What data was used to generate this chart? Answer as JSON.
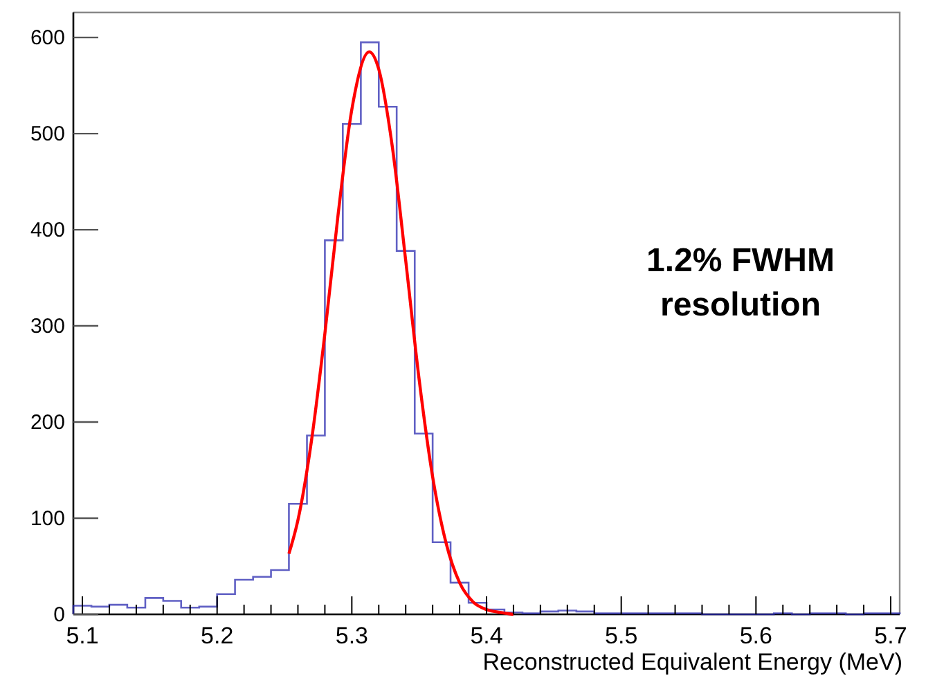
{
  "chart_data": {
    "type": "histogram",
    "xlabel": "Reconstructed Equivalent Energy (MeV)",
    "annotations": [
      "1.2% FWHM\nresolution"
    ],
    "xlim": [
      5.0933,
      5.7067
    ],
    "ylim": [
      0,
      626
    ],
    "xticks": [
      5.1,
      {
        "value": 5.12,
        "label": null
      },
      {
        "value": 5.14,
        "label": null
      },
      {
        "value": 5.16,
        "label": null
      },
      {
        "value": 5.18,
        "label": null
      },
      5.2,
      {
        "value": 5.22,
        "label": null
      },
      {
        "value": 5.24,
        "label": null
      },
      {
        "value": 5.26,
        "label": null
      },
      {
        "value": 5.28,
        "label": null
      },
      5.3,
      {
        "value": 5.32,
        "label": null
      },
      {
        "value": 5.34,
        "label": null
      },
      {
        "value": 5.36,
        "label": null
      },
      {
        "value": 5.38,
        "label": null
      },
      5.4,
      {
        "value": 5.42,
        "label": null
      },
      {
        "value": 5.44,
        "label": null
      },
      {
        "value": 5.46,
        "label": null
      },
      {
        "value": 5.48,
        "label": null
      },
      5.5,
      {
        "value": 5.52,
        "label": null
      },
      {
        "value": 5.54,
        "label": null
      },
      {
        "value": 5.56,
        "label": null
      },
      {
        "value": 5.58,
        "label": null
      },
      5.6,
      {
        "value": 5.62,
        "label": null
      },
      {
        "value": 5.64,
        "label": null
      },
      {
        "value": 5.66,
        "label": null
      },
      {
        "value": 5.68,
        "label": null
      },
      5.7
    ],
    "yticks": [
      0,
      100,
      200,
      300,
      400,
      500,
      600
    ],
    "grid": false,
    "series": [
      {
        "type": "histogram",
        "color": "#2b2bb0",
        "bins": [
          5.0933,
          5.1067,
          5.12,
          5.1333,
          5.1467,
          5.16,
          5.1733,
          5.1867,
          5.2,
          5.2133,
          5.2267,
          5.24,
          5.2533,
          5.2667,
          5.28,
          5.2933,
          5.3067,
          5.32,
          5.3333,
          5.3467,
          5.36,
          5.3733,
          5.3867,
          5.4,
          5.4133,
          5.4267,
          5.44,
          5.4533,
          5.4667,
          5.48,
          5.4933,
          5.5067,
          5.52,
          5.5333,
          5.5467,
          5.56,
          5.5733,
          5.5867,
          5.6,
          5.6133,
          5.6267,
          5.64,
          5.6533,
          5.6667,
          5.68,
          5.6933,
          5.7067
        ],
        "values": [
          9,
          8,
          10,
          7,
          17,
          14,
          7,
          8,
          21,
          36,
          39,
          46,
          115,
          186,
          389,
          510,
          595,
          528,
          378,
          188,
          75,
          33,
          12,
          5,
          2,
          1,
          3,
          4,
          3,
          1,
          1,
          1,
          1,
          1,
          1,
          0,
          0,
          0,
          0,
          1,
          0,
          1,
          1,
          0,
          1,
          1
        ]
      },
      {
        "type": "line",
        "color": "#ff0000",
        "x": [
          5.2533,
          5.26,
          5.27,
          5.28,
          5.29,
          5.3,
          5.313,
          5.32,
          5.33,
          5.34,
          5.35,
          5.36,
          5.37,
          5.38,
          5.39,
          5.4,
          5.41,
          5.42
        ],
        "values": [
          63,
          98,
          180,
          292,
          418,
          525,
          585,
          567,
          487,
          368,
          244,
          143,
          74,
          33,
          13,
          5,
          2,
          0
        ]
      }
    ]
  }
}
